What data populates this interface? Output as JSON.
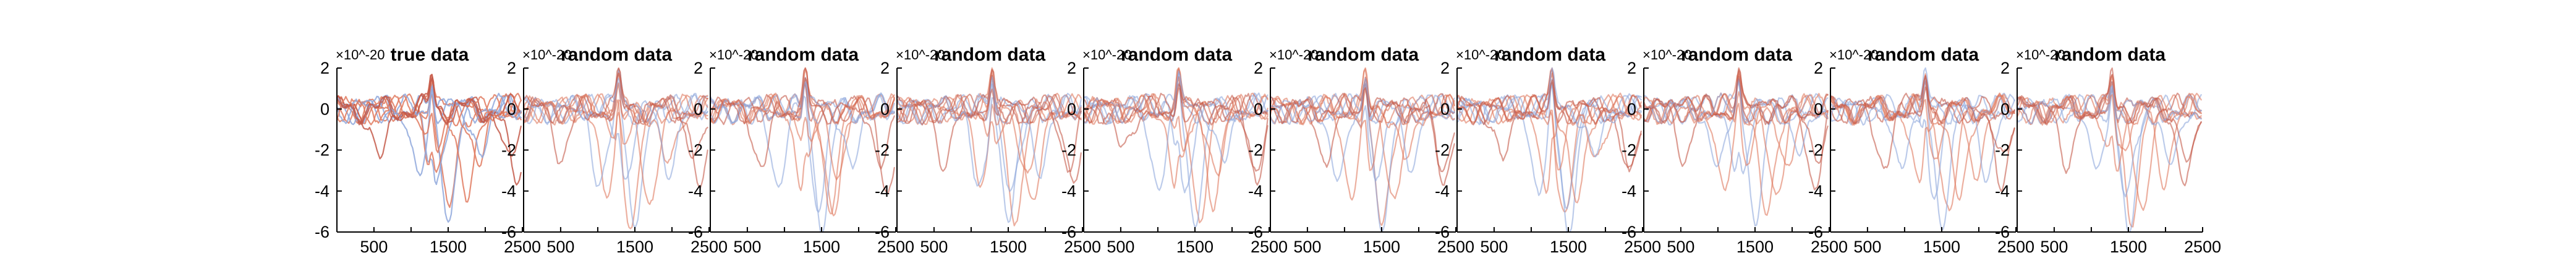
{
  "chart_data": {
    "type": "line",
    "layout": "10 small-multiple panels in a single row",
    "grid": false,
    "legend": "none",
    "x_ticks": [
      500,
      1000,
      1500,
      2000,
      2500
    ],
    "x_tick_labels": [
      "500",
      "1500",
      "2500"
    ],
    "xlim": [
      1,
      2500
    ],
    "y_ticks": [
      -6,
      -4,
      -2,
      0,
      2
    ],
    "ylim": [
      -6,
      2
    ],
    "y_exponent": "×10^-20",
    "colors": {
      "warm": "#e07a5f",
      "cool": "#8fa8dc",
      "dark": "#c45a4a"
    },
    "panels": [
      {
        "title": "true data",
        "seed": 1
      },
      {
        "title": "random data",
        "seed": 2
      },
      {
        "title": "random data",
        "seed": 3
      },
      {
        "title": "random data",
        "seed": 4
      },
      {
        "title": "random data",
        "seed": 5
      },
      {
        "title": "random data",
        "seed": 6
      },
      {
        "title": "random data",
        "seed": 7
      },
      {
        "title": "random data",
        "seed": 8
      },
      {
        "title": "random data",
        "seed": 9
      },
      {
        "title": "random data",
        "seed": 10
      }
    ],
    "series": [
      {
        "color": "warm",
        "peak_x": 1550,
        "peak_y": -5.4
      },
      {
        "color": "cool",
        "peak_x": 1600,
        "peak_y": -5.2
      },
      {
        "color": "warm",
        "peak_x": 1720,
        "peak_y": -4.6
      },
      {
        "color": "cool",
        "peak_x": 1420,
        "peak_y": -4.1
      },
      {
        "color": "warm",
        "peak_x": 1200,
        "peak_y": -3.9
      },
      {
        "color": "dark",
        "peak_x": 2300,
        "peak_y": -3.6
      },
      {
        "color": "cool",
        "peak_x": 980,
        "peak_y": -3.3
      },
      {
        "color": "warm",
        "peak_x": 1850,
        "peak_y": -3.1
      },
      {
        "color": "dark",
        "peak_x": 640,
        "peak_y": -2.4
      },
      {
        "color": "cool",
        "peak_x": 2000,
        "peak_y": -2.7
      },
      {
        "color": "warm",
        "peak_x": 1350,
        "peak_y": -2.2
      },
      {
        "color": "dark",
        "peak_x": 2420,
        "peak_y": -2.9
      }
    ]
  }
}
